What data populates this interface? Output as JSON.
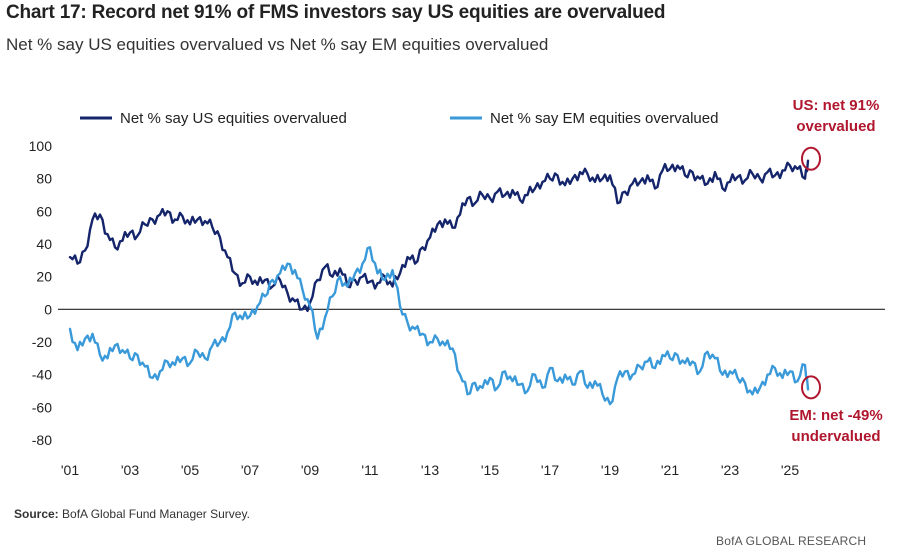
{
  "header": {
    "title": "Chart 17: Record net 91% of FMS investors say US equities are overvalued",
    "subtitle": "Net % say US equities overvalued vs Net % say EM equities overvalued"
  },
  "footer": {
    "source_label": "Source:",
    "source_text": "BofA Global Fund Manager Survey.",
    "brand": "BofA GLOBAL RESEARCH"
  },
  "colors": {
    "us_series": "#15256b",
    "em_series": "#3a9ad9",
    "annotation": "#b0172e",
    "zero_line": "#222222"
  },
  "chart_data": {
    "type": "line",
    "title": "Chart 17: Record net 91% of FMS investors say US equities are overvalued",
    "subtitle": "Net % say US equities overvalued vs Net % say EM equities overvalued",
    "xlabel": "",
    "ylabel": "",
    "ylim": [
      -80,
      100
    ],
    "xlim": [
      2001,
      2026.5
    ],
    "y_ticks": [
      100,
      80,
      60,
      40,
      20,
      0,
      -20,
      -40,
      -60,
      -80
    ],
    "y_tick_labels": [
      "100",
      "80",
      "60",
      "40",
      "20",
      "0",
      "-20",
      "-40",
      "-60",
      "-80"
    ],
    "x_ticks": [
      2001,
      2003,
      2005,
      2007,
      2009,
      2011,
      2013,
      2015,
      2017,
      2019,
      2021,
      2023,
      2025
    ],
    "x_tick_labels": [
      "'01",
      "'03",
      "'05",
      "'07",
      "'09",
      "'11",
      "'13",
      "'15",
      "'17",
      "'19",
      "'21",
      "'23",
      "'25"
    ],
    "zero_line": true,
    "grid": false,
    "legend": {
      "position": "top",
      "entries": [
        "Net % say US equities overvalued",
        "Net % say EM equities overvalued"
      ]
    },
    "series": [
      {
        "name": "Net % say US equities overvalued",
        "x": [
          2001.0,
          2001.25,
          2001.5,
          2001.75,
          2002.0,
          2002.25,
          2002.5,
          2002.75,
          2003.0,
          2003.25,
          2003.5,
          2003.75,
          2004.0,
          2004.25,
          2004.5,
          2004.75,
          2005.0,
          2005.25,
          2005.5,
          2005.75,
          2006.0,
          2006.25,
          2006.5,
          2006.75,
          2007.0,
          2007.25,
          2007.5,
          2007.75,
          2008.0,
          2008.25,
          2008.5,
          2008.75,
          2009.0,
          2009.25,
          2009.5,
          2009.75,
          2010.0,
          2010.25,
          2010.5,
          2010.75,
          2011.0,
          2011.25,
          2011.5,
          2011.75,
          2012.0,
          2012.25,
          2012.5,
          2012.75,
          2013.0,
          2013.25,
          2013.5,
          2013.75,
          2014.0,
          2014.25,
          2014.5,
          2014.75,
          2015.0,
          2015.25,
          2015.5,
          2015.75,
          2016.0,
          2016.25,
          2016.5,
          2016.75,
          2017.0,
          2017.25,
          2017.5,
          2017.75,
          2018.0,
          2018.25,
          2018.5,
          2018.75,
          2019.0,
          2019.25,
          2019.5,
          2019.75,
          2020.0,
          2020.25,
          2020.5,
          2020.75,
          2021.0,
          2021.25,
          2021.5,
          2021.75,
          2022.0,
          2022.25,
          2022.5,
          2022.75,
          2023.0,
          2023.25,
          2023.5,
          2023.75,
          2024.0,
          2024.25,
          2024.5,
          2024.75,
          2025.0,
          2025.25,
          2025.5,
          2025.6
        ],
        "values": [
          32,
          28,
          36,
          55,
          58,
          46,
          38,
          42,
          47,
          45,
          52,
          55,
          58,
          60,
          55,
          57,
          52,
          55,
          54,
          50,
          44,
          32,
          22,
          16,
          20,
          15,
          18,
          14,
          18,
          10,
          5,
          0,
          4,
          18,
          26,
          20,
          25,
          14,
          18,
          20,
          17,
          16,
          20,
          14,
          22,
          32,
          28,
          38,
          44,
          52,
          55,
          50,
          58,
          68,
          65,
          70,
          68,
          72,
          70,
          73,
          67,
          70,
          74,
          78,
          80,
          82,
          76,
          80,
          84,
          83,
          78,
          80,
          82,
          65,
          72,
          77,
          78,
          82,
          74,
          85,
          86,
          88,
          82,
          84,
          80,
          77,
          84,
          74,
          78,
          81,
          79,
          83,
          80,
          84,
          82,
          85,
          88,
          86,
          80,
          91
        ]
      },
      {
        "name": "Net % say EM equities overvalued",
        "x": [
          2001.0,
          2001.25,
          2001.5,
          2001.75,
          2002.0,
          2002.25,
          2002.5,
          2002.75,
          2003.0,
          2003.25,
          2003.5,
          2003.75,
          2004.0,
          2004.25,
          2004.5,
          2004.75,
          2005.0,
          2005.25,
          2005.5,
          2005.75,
          2006.0,
          2006.25,
          2006.5,
          2006.75,
          2007.0,
          2007.25,
          2007.5,
          2007.75,
          2008.0,
          2008.25,
          2008.5,
          2008.75,
          2009.0,
          2009.25,
          2009.5,
          2009.75,
          2010.0,
          2010.25,
          2010.5,
          2010.75,
          2011.0,
          2011.25,
          2011.5,
          2011.75,
          2012.0,
          2012.25,
          2012.5,
          2012.75,
          2013.0,
          2013.25,
          2013.5,
          2013.75,
          2014.0,
          2014.25,
          2014.5,
          2014.75,
          2015.0,
          2015.25,
          2015.5,
          2015.75,
          2016.0,
          2016.25,
          2016.5,
          2016.75,
          2017.0,
          2017.25,
          2017.5,
          2017.75,
          2018.0,
          2018.25,
          2018.5,
          2018.75,
          2019.0,
          2019.25,
          2019.5,
          2019.75,
          2020.0,
          2020.25,
          2020.5,
          2020.75,
          2021.0,
          2021.25,
          2021.5,
          2021.75,
          2022.0,
          2022.25,
          2022.5,
          2022.75,
          2023.0,
          2023.25,
          2023.5,
          2023.75,
          2024.0,
          2024.25,
          2024.5,
          2024.75,
          2025.0,
          2025.25,
          2025.5,
          2025.6
        ],
        "values": [
          -12,
          -25,
          -18,
          -15,
          -28,
          -30,
          -22,
          -25,
          -30,
          -28,
          -35,
          -42,
          -38,
          -32,
          -34,
          -30,
          -33,
          -26,
          -30,
          -22,
          -20,
          -14,
          -2,
          -6,
          -4,
          2,
          8,
          18,
          22,
          28,
          24,
          12,
          2,
          -18,
          -5,
          8,
          20,
          14,
          22,
          28,
          38,
          22,
          18,
          24,
          2,
          -8,
          -12,
          -15,
          -20,
          -18,
          -22,
          -24,
          -40,
          -52,
          -45,
          -48,
          -42,
          -48,
          -38,
          -44,
          -46,
          -50,
          -40,
          -48,
          -36,
          -44,
          -40,
          -46,
          -38,
          -48,
          -44,
          -52,
          -58,
          -42,
          -38,
          -40,
          -35,
          -32,
          -36,
          -28,
          -30,
          -28,
          -33,
          -32,
          -38,
          -26,
          -30,
          -40,
          -38,
          -42,
          -45,
          -52,
          -48,
          -40,
          -36,
          -42,
          -38,
          -44,
          -34,
          -49
        ]
      }
    ],
    "annotations": [
      {
        "text": [
          "US: net 91%",
          "overvalued"
        ],
        "target_x": 2025.6,
        "target_y": 91
      },
      {
        "text": [
          "EM: net -49%",
          "undervalued"
        ],
        "target_x": 2025.6,
        "target_y": -49
      }
    ]
  }
}
